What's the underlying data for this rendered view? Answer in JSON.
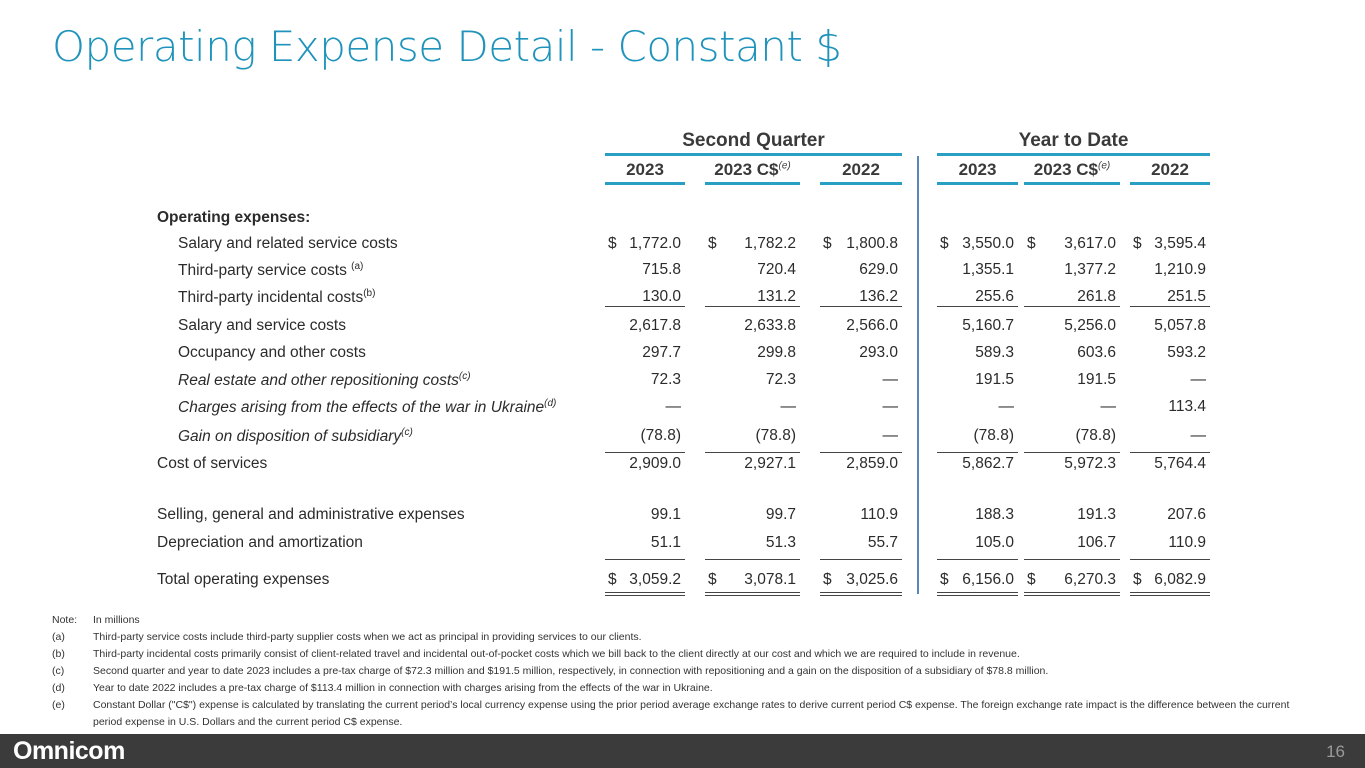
{
  "title": "Operating Expense Detail - Constant $",
  "groups": [
    "Second Quarter",
    "Year to Date"
  ],
  "columns": [
    {
      "label": "2023",
      "sup": ""
    },
    {
      "label": "2023 C$",
      "sup": "(e)"
    },
    {
      "label": "2022",
      "sup": ""
    },
    {
      "label": "2023",
      "sup": ""
    },
    {
      "label": "2023 C$",
      "sup": "(e)"
    },
    {
      "label": "2022",
      "sup": ""
    }
  ],
  "rows": [
    {
      "label": "Operating expenses:",
      "sup": "",
      "bold": true,
      "indent": false,
      "italic": false,
      "dollar": false,
      "values": []
    },
    {
      "label": "Salary and related service costs",
      "sup": "",
      "indent": true,
      "dollar": true,
      "values": [
        "1,772.0",
        "1,782.2",
        "1,800.8",
        "3,550.0",
        "3,617.0",
        "3,595.4"
      ]
    },
    {
      "label": "Third-party service costs ",
      "sup": "(a)",
      "indent": true,
      "values": [
        "715.8",
        "720.4",
        "629.0",
        "1,355.1",
        "1,377.2",
        "1,210.9"
      ]
    },
    {
      "label": "Third-party incidental costs",
      "sup": "(b)",
      "indent": true,
      "values": [
        "130.0",
        "131.2",
        "136.2",
        "255.6",
        "261.8",
        "251.5"
      ]
    },
    {
      "label": "Salary and service costs",
      "sup": "",
      "indent": true,
      "values": [
        "2,617.8",
        "2,633.8",
        "2,566.0",
        "5,160.7",
        "5,256.0",
        "5,057.8"
      ]
    },
    {
      "label": "Occupancy and other costs",
      "sup": "",
      "indent": true,
      "values": [
        "297.7",
        "299.8",
        "293.0",
        "589.3",
        "603.6",
        "593.2"
      ]
    },
    {
      "label": "Real estate and other repositioning costs",
      "sup": "(c)",
      "indent": true,
      "italic": true,
      "values": [
        "72.3",
        "72.3",
        "—",
        "191.5",
        "191.5",
        "—"
      ]
    },
    {
      "label": "Charges arising from the effects of the war in Ukraine",
      "sup": "(d)",
      "indent": true,
      "italic": true,
      "values": [
        "—",
        "—",
        "—",
        "—",
        "—",
        "113.4"
      ]
    },
    {
      "label": "Gain on disposition of subsidiary",
      "sup": "(c)",
      "indent": true,
      "italic": true,
      "values": [
        "(78.8)",
        "(78.8)",
        "—",
        "(78.8)",
        "(78.8)",
        "—"
      ]
    },
    {
      "label": "Cost of services",
      "sup": "",
      "values": [
        "2,909.0",
        "2,927.1",
        "2,859.0",
        "5,862.7",
        "5,972.3",
        "5,764.4"
      ]
    },
    {
      "label": "Selling, general and administrative expenses",
      "sup": "",
      "values": [
        "99.1",
        "99.7",
        "110.9",
        "188.3",
        "191.3",
        "207.6"
      ]
    },
    {
      "label": "Depreciation and amortization",
      "sup": "",
      "values": [
        "51.1",
        "51.3",
        "55.7",
        "105.0",
        "106.7",
        "110.9"
      ]
    },
    {
      "label": "Total operating expenses",
      "sup": "",
      "dollar": true,
      "values": [
        "3,059.2",
        "3,078.1",
        "3,025.6",
        "6,156.0",
        "6,270.3",
        "6,082.9"
      ]
    }
  ],
  "currency_symbol": "$",
  "notes": [
    {
      "key": "Note:",
      "text": "In millions"
    },
    {
      "key": "(a)",
      "text": "Third-party service costs include third-party supplier costs when we act as principal in providing services to our clients."
    },
    {
      "key": "(b)",
      "text": "Third-party incidental costs primarily consist of client-related travel and incidental out-of-pocket costs which we bill back to the client directly at our cost and which we are required to include in revenue."
    },
    {
      "key": "(c)",
      "text": "Second quarter and year to date 2023 includes a pre-tax charge of $72.3 million and $191.5 million, respectively, in connection with repositioning and a gain on the disposition of a subsidiary of $78.8 million."
    },
    {
      "key": "(d)",
      "text": "Year to date 2022 includes a pre-tax charge of $113.4 million in connection with charges arising from the effects of the war in Ukraine."
    },
    {
      "key": "(e)",
      "text": "Constant Dollar (\"C$\") expense is calculated by translating the current period’s local currency expense using the prior period average exchange rates to derive current period C$ expense. The foreign exchange rate impact is the difference between the current period expense in U.S. Dollars and the current period C$ expense."
    }
  ],
  "footer": {
    "logo": "Omnicom",
    "page": "16"
  }
}
